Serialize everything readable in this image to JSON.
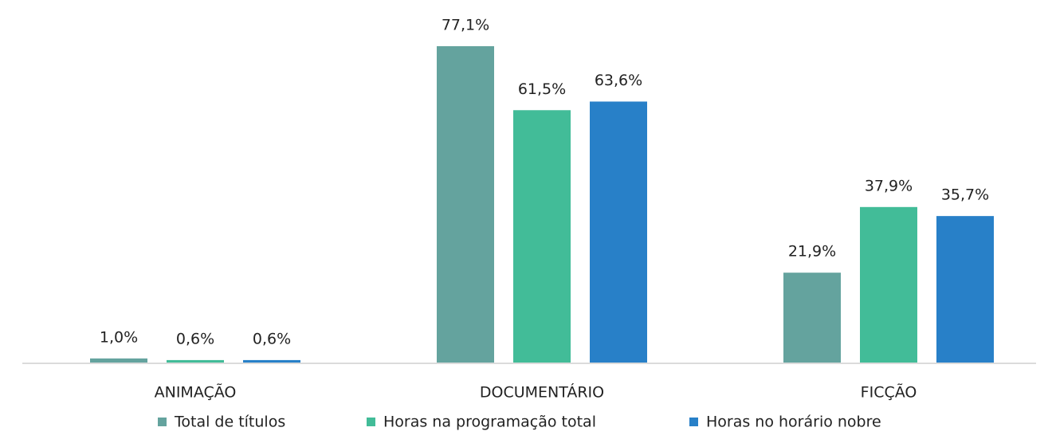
{
  "chart_data": {
    "type": "bar",
    "categories": [
      "ANIMAÇÃO",
      "DOCUMENTÁRIO",
      "FICÇÃO"
    ],
    "series": [
      {
        "name": "Total de títulos",
        "color": "#64a39e",
        "values": [
          1.0,
          77.1,
          21.9
        ],
        "value_labels": [
          "1,0%",
          "77,1%",
          "21,9%"
        ]
      },
      {
        "name": "Horas na programação total",
        "color": "#42bc98",
        "values": [
          0.6,
          61.5,
          37.9
        ],
        "value_labels": [
          "0,6%",
          "61,5%",
          "37,9%"
        ]
      },
      {
        "name": "Horas no horário nobre",
        "color": "#2880c8",
        "values": [
          0.6,
          63.6,
          35.7
        ],
        "value_labels": [
          "0,6%",
          "63,6%",
          "35,7%"
        ]
      }
    ],
    "ylim": [
      0,
      80
    ]
  }
}
